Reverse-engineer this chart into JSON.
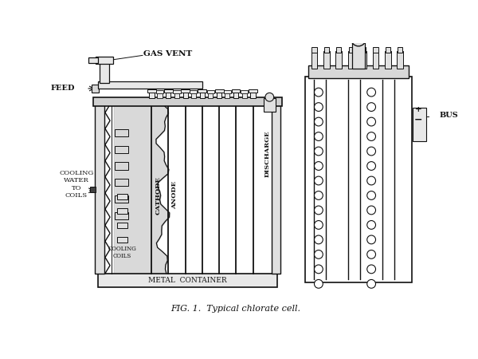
{
  "bg_color": "white",
  "line_color": "#111111",
  "title": "FIG. 1.  Typical chlorate cell.",
  "title_fontsize": 8,
  "label_gas_vent": "GAS VENT",
  "label_feed": "FEED",
  "label_cooling": "COOLING\nWATER\nTO\nCOILS",
  "label_cathode": "CATHODE",
  "label_anode": "ANODE",
  "label_discharge": "DISCHARGE",
  "label_cooling_coils": "COOLING\nCOILS",
  "label_metal_container": "METAL  CONTAINER",
  "label_bus": "BUS",
  "label_plus": "+",
  "label_minus": "−"
}
